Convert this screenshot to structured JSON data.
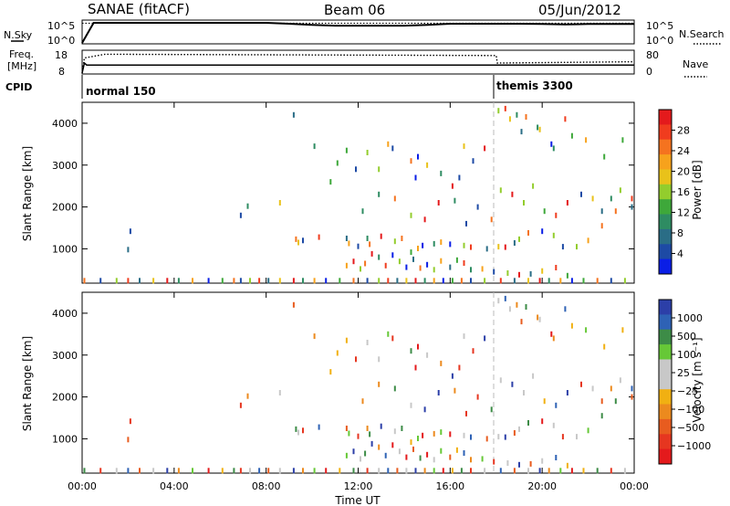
{
  "header": {
    "station": "SANAE (fitACF)",
    "beam": "Beam 06",
    "date": "05/Jun/2012"
  },
  "panel_nsky": {
    "left_label": "N.Sky",
    "right_label": "N.Search",
    "left_ticks": [
      "10^5",
      "10^0"
    ],
    "right_ticks": [
      "10^5",
      "10^0"
    ]
  },
  "panel_freq": {
    "left_label_1": "Freq.",
    "left_label_2": "[MHz]",
    "right_label": "Nave",
    "left_ticks": [
      "18",
      "8"
    ],
    "right_ticks": [
      "80",
      "0"
    ]
  },
  "panel_cpid": {
    "label": "CPID",
    "modes": [
      {
        "name": "normal 150",
        "start_hour": 0
      },
      {
        "name": "themis 3300",
        "start_hour": 18
      }
    ]
  },
  "power_scale": {
    "title": "Power [dB]",
    "ticks": [
      "28",
      "24",
      "20",
      "16",
      "12",
      "8",
      "4"
    ],
    "colors": [
      "#e41a1c",
      "#f03c1e",
      "#f5731f",
      "#f7a21c",
      "#e9c21a",
      "#93cd2d",
      "#3ea83a",
      "#2e8c62",
      "#2a6d86",
      "#1d4aa5",
      "#0a1ee6"
    ]
  },
  "velocity_scale": {
    "title": "Velocity [m s⁻¹]",
    "ticks": [
      "1000",
      "500",
      "100",
      "25",
      "−25",
      "−100",
      "−500",
      "−1000"
    ],
    "colors": [
      "#2c3fa8",
      "#2e62b5",
      "#3d8c47",
      "#66c837",
      "#c8c8c8",
      "#c8c8c8",
      "#f1b012",
      "#ec8a1e",
      "#e85c1f",
      "#e63620",
      "#e41a1c"
    ]
  },
  "x_axis": {
    "label": "Time UT",
    "ticks": [
      "00:00",
      "04:00",
      "08:00",
      "12:00",
      "16:00",
      "20:00",
      "00:00"
    ]
  },
  "chart_data": [
    {
      "type": "line",
      "title": "N.Sky / N.Search",
      "xlabel": "",
      "ylabel": "N.Sky",
      "xlim": [
        0,
        24
      ],
      "ylog": true,
      "series": [
        {
          "name": "N.Sky",
          "x": [
            0,
            0.5,
            1,
            2,
            3,
            4,
            5,
            6,
            7,
            8,
            9,
            10,
            11,
            12,
            13,
            14,
            15,
            16,
            17,
            18,
            19,
            20,
            21,
            22,
            23,
            24
          ],
          "y": [
            1,
            100000,
            100000,
            100000,
            100000,
            100000,
            100000,
            100000,
            100000,
            100000,
            60000,
            30000,
            20000,
            20000,
            20000,
            20000,
            30000,
            60000,
            60000,
            60000,
            60000,
            50000,
            40000,
            50000,
            50000,
            50000
          ]
        },
        {
          "name": "N.Search",
          "x": [
            0,
            24
          ],
          "y": [
            80000,
            80000
          ]
        }
      ]
    },
    {
      "type": "line",
      "title": "Freq / Nave",
      "xlabel": "",
      "ylabel": "Freq. [MHz]",
      "xlim": [
        0,
        24
      ],
      "series": [
        {
          "name": "Freq",
          "x": [
            0,
            0.1,
            0.2,
            1,
            2,
            18,
            18.05,
            24
          ],
          "y": [
            8,
            13,
            12,
            12,
            12,
            12,
            12,
            12
          ]
        },
        {
          "name": "Nave",
          "x": [
            0,
            0.1,
            1,
            18,
            18.05,
            24
          ],
          "y": [
            0,
            60,
            75,
            70,
            40,
            45
          ]
        }
      ]
    },
    {
      "type": "scatter",
      "title": "Power [dB]",
      "xlabel": "",
      "ylabel": "Slant Range [km]",
      "xlim": [
        0,
        24
      ],
      "ylim": [
        180,
        4500
      ],
      "series": [
        {
          "name": "echoes",
          "x": [
            0.1,
            0.8,
            1.5,
            2.0,
            2.5,
            3.1,
            3.7,
            4.2,
            4.8,
            5.5,
            6.1,
            6.6,
            6.9,
            7.3,
            7.7,
            8.1,
            8.6,
            9.2,
            9.6,
            10.1,
            10.6,
            11.2,
            11.8,
            12.4,
            12.9,
            13.3,
            13.7,
            14.1,
            14.5,
            14.9,
            15.3,
            15.7,
            16.1,
            16.5,
            16.9,
            17.5,
            18.2,
            18.8,
            19.4,
            19.9,
            20.3,
            20.8,
            21.3,
            21.8,
            22.4,
            23.0,
            23.6,
            2.0,
            2.1,
            6.9,
            7.2,
            8.6,
            9.3,
            9.6,
            9.4,
            10.3,
            11.5,
            11.6,
            12.0,
            12.4,
            12.5,
            13.0,
            13.6,
            13.9,
            14.3,
            14.6,
            14.8,
            15.3,
            15.6,
            16.0,
            16.6,
            16.9,
            17.6,
            18.1,
            18.4,
            18.8,
            19.0,
            19.4,
            20.0,
            20.5,
            20.9,
            21.5,
            22.0,
            22.6,
            23.2,
            23.9,
            11.5,
            11.8,
            12.1,
            12.3,
            12.6,
            12.9,
            13.2,
            13.5,
            13.8,
            14.1,
            14.4,
            14.7,
            15.0,
            15.3,
            15.6,
            16.0,
            16.3,
            16.6,
            16.9,
            17.4,
            17.9,
            18.5,
            19.0,
            19.5,
            20.0,
            20.6,
            21.1,
            12.2,
            12.9,
            13.6,
            14.3,
            14.9,
            15.5,
            16.2,
            16.7,
            17.2,
            17.8,
            18.2,
            18.7,
            19.2,
            19.6,
            20.1,
            20.6,
            21.1,
            21.7,
            22.2,
            22.6,
            23.0,
            23.4,
            23.9,
            10.1,
            10.8,
            11.1,
            12.4,
            13.3,
            13.5,
            14.3,
            14.6,
            15.0,
            16.6,
            17.5,
            18.1,
            18.4,
            18.9,
            19.3,
            19.8,
            20.4,
            21.0,
            21.9,
            22.7,
            23.5,
            9.2,
            11.5,
            11.9,
            12.9,
            14.5,
            15.6,
            16.1,
            16.4,
            17.0,
            18.6,
            19.1,
            19.9,
            20.5,
            21.3
          ],
          "y": [
            240,
            240,
            240,
            240,
            240,
            240,
            240,
            240,
            240,
            240,
            240,
            240,
            240,
            240,
            240,
            240,
            240,
            240,
            240,
            240,
            240,
            240,
            240,
            240,
            240,
            240,
            240,
            240,
            240,
            240,
            240,
            240,
            240,
            240,
            240,
            240,
            240,
            240,
            240,
            240,
            240,
            240,
            240,
            240,
            240,
            240,
            240,
            980,
            1420,
            1800,
            2020,
            2100,
            1230,
            1200,
            1150,
            1280,
            1250,
            1130,
            1060,
            1250,
            1110,
            1300,
            1180,
            1250,
            920,
            1010,
            1080,
            1120,
            1160,
            1110,
            1080,
            1040,
            1000,
            1050,
            1040,
            1140,
            1230,
            1380,
            1420,
            1320,
            1050,
            1050,
            1200,
            1550,
            1900,
            2200,
            600,
            700,
            520,
            650,
            880,
            800,
            600,
            850,
            700,
            560,
            750,
            540,
            620,
            500,
            710,
            560,
            730,
            660,
            500,
            520,
            450,
            420,
            380,
            400,
            470,
            550,
            360,
            1900,
            2300,
            2200,
            1800,
            1700,
            2100,
            2150,
            1600,
            2000,
            1700,
            2400,
            2300,
            2100,
            2500,
            1900,
            1800,
            2100,
            2300,
            2200,
            1900,
            2200,
            2400,
            2000,
            3450,
            2600,
            3050,
            3300,
            3500,
            3400,
            3100,
            3200,
            3000,
            3450,
            3400,
            4300,
            4350,
            4200,
            4150,
            3900,
            3500,
            4100,
            3600,
            3200,
            3600,
            4200,
            3350,
            2900,
            2900,
            2700,
            2800,
            2500,
            2700,
            3100,
            4100,
            3800,
            3850,
            3400,
            3700
          ]
        }
      ]
    },
    {
      "type": "scatter",
      "title": "Velocity [m s⁻¹]",
      "xlabel": "Time UT",
      "ylabel": "Slant Range [km]",
      "xlim": [
        0,
        24
      ],
      "ylim": [
        180,
        4500
      ],
      "series": [
        {
          "name": "echoes",
          "x": [
            0.1,
            0.8,
            1.5,
            2.0,
            2.5,
            3.1,
            3.7,
            4.2,
            4.8,
            5.5,
            6.1,
            6.6,
            6.9,
            7.3,
            7.7,
            8.1,
            8.6,
            9.2,
            9.6,
            10.1,
            10.6,
            11.2,
            11.8,
            12.4,
            12.9,
            13.3,
            13.7,
            14.1,
            14.5,
            14.9,
            15.3,
            15.7,
            16.1,
            16.5,
            16.9,
            17.5,
            18.2,
            18.8,
            19.4,
            19.9,
            20.3,
            20.8,
            21.3,
            21.8,
            22.4,
            23.0,
            23.6,
            2.0,
            2.1,
            6.9,
            7.2,
            8.6,
            9.3,
            9.6,
            9.4,
            10.3,
            11.5,
            11.6,
            12.0,
            12.4,
            12.5,
            13.0,
            13.6,
            13.9,
            14.3,
            14.6,
            14.8,
            15.3,
            15.6,
            16.0,
            16.6,
            16.9,
            17.6,
            18.1,
            18.4,
            18.8,
            19.0,
            19.4,
            20.0,
            20.5,
            20.9,
            21.5,
            22.0,
            22.6,
            23.2,
            23.9,
            11.5,
            11.8,
            12.1,
            12.3,
            12.6,
            12.9,
            13.2,
            13.5,
            13.8,
            14.1,
            14.4,
            14.7,
            15.0,
            15.3,
            15.6,
            16.0,
            16.3,
            16.6,
            16.9,
            17.4,
            17.9,
            18.5,
            19.0,
            19.5,
            20.0,
            20.6,
            21.1,
            12.2,
            12.9,
            13.6,
            14.3,
            14.9,
            15.5,
            16.2,
            16.7,
            17.2,
            17.8,
            18.2,
            18.7,
            19.2,
            19.6,
            20.1,
            20.6,
            21.1,
            21.7,
            22.2,
            22.6,
            23.0,
            23.4,
            23.9,
            10.1,
            10.8,
            11.1,
            12.4,
            13.3,
            13.5,
            14.3,
            14.6,
            15.0,
            16.6,
            17.5,
            18.1,
            18.4,
            18.9,
            19.3,
            19.8,
            20.4,
            21.0,
            21.9,
            22.7,
            23.5,
            9.2,
            11.5,
            11.9,
            12.9,
            14.5,
            15.6,
            16.1,
            16.4,
            17.0,
            18.6,
            19.1,
            19.9,
            20.5,
            21.3
          ],
          "y": [
            240,
            240,
            240,
            240,
            240,
            240,
            240,
            240,
            240,
            240,
            240,
            240,
            240,
            240,
            240,
            240,
            240,
            240,
            240,
            240,
            240,
            240,
            240,
            240,
            240,
            240,
            240,
            240,
            240,
            240,
            240,
            240,
            240,
            240,
            240,
            240,
            240,
            240,
            240,
            240,
            240,
            240,
            240,
            240,
            240,
            240,
            240,
            980,
            1420,
            1800,
            2020,
            2100,
            1230,
            1200,
            1150,
            1280,
            1250,
            1130,
            1060,
            1250,
            1110,
            1300,
            1180,
            1250,
            920,
            1010,
            1080,
            1120,
            1160,
            1110,
            1080,
            1040,
            1000,
            1050,
            1040,
            1140,
            1230,
            1380,
            1420,
            1320,
            1050,
            1050,
            1200,
            1550,
            1900,
            2200,
            600,
            700,
            520,
            650,
            880,
            800,
            600,
            850,
            700,
            560,
            750,
            540,
            620,
            500,
            710,
            560,
            730,
            660,
            500,
            520,
            450,
            420,
            380,
            400,
            470,
            550,
            360,
            1900,
            2300,
            2200,
            1800,
            1700,
            2100,
            2150,
            1600,
            2000,
            1700,
            2400,
            2300,
            2100,
            2500,
            1900,
            1800,
            2100,
            2300,
            2200,
            1900,
            2200,
            2400,
            2000,
            3450,
            2600,
            3050,
            3300,
            3500,
            3400,
            3100,
            3200,
            3000,
            3450,
            3400,
            4300,
            4350,
            4200,
            4150,
            3900,
            3500,
            4100,
            3600,
            3200,
            3600,
            4200,
            3350,
            2900,
            2900,
            2700,
            2800,
            2500,
            2700,
            3100,
            4100,
            3800,
            3850,
            3400,
            3700
          ]
        }
      ]
    }
  ],
  "y_axis": {
    "label": "Slant Range [km]",
    "ticks": [
      "4000",
      "3000",
      "2000",
      "1000"
    ],
    "tick_values": [
      4000,
      3000,
      2000,
      1000
    ]
  }
}
